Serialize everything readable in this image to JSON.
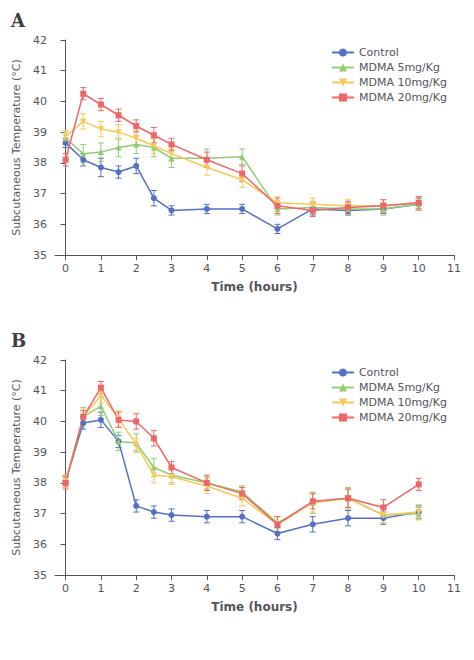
{
  "chart_data": [
    {
      "type": "line",
      "title": "A",
      "xlabel": "Time (hours)",
      "ylabel": "Subcutaneous Temperature (°C)",
      "x": [
        0,
        0.5,
        1,
        1.5,
        2,
        2.5,
        3,
        4,
        5,
        6,
        7,
        8,
        9,
        10
      ],
      "xlim": [
        -0.3,
        11
      ],
      "ylim": [
        35,
        42
      ],
      "xticks": [
        0,
        1,
        2,
        3,
        4,
        5,
        6,
        7,
        8,
        9,
        10,
        11
      ],
      "yticks": [
        35,
        36,
        37,
        38,
        39,
        40,
        41,
        42
      ],
      "grid": false,
      "legend": "upper right",
      "series": [
        {
          "name": "Control",
          "marker": "circle",
          "values": [
            38.65,
            38.1,
            37.85,
            37.7,
            37.9,
            36.85,
            36.45,
            36.5,
            36.5,
            35.85,
            36.5,
            36.45,
            36.5,
            36.65
          ],
          "errors": [
            0.15,
            0.2,
            0.3,
            0.2,
            0.25,
            0.25,
            0.15,
            0.15,
            0.15,
            0.15,
            0.2,
            0.15,
            0.15,
            0.2
          ]
        },
        {
          "name": "MDMA 5mg/Kg",
          "marker": "triangle-up",
          "values": [
            38.8,
            38.3,
            38.35,
            38.5,
            38.6,
            38.5,
            38.15,
            38.15,
            38.2,
            36.5,
            36.55,
            36.5,
            36.5,
            36.65
          ],
          "errors": [
            0.2,
            0.3,
            0.3,
            0.3,
            0.3,
            0.3,
            0.3,
            0.3,
            0.25,
            0.2,
            0.2,
            0.2,
            0.2,
            0.2
          ]
        },
        {
          "name": "MDMA 10mg/Kg",
          "marker": "triangle-down",
          "values": [
            38.85,
            39.35,
            39.1,
            39.0,
            38.8,
            38.55,
            38.3,
            37.85,
            37.45,
            36.7,
            36.65,
            36.6,
            36.6,
            36.7
          ],
          "errors": [
            0.2,
            0.25,
            0.25,
            0.25,
            0.25,
            0.25,
            0.25,
            0.25,
            0.25,
            0.2,
            0.2,
            0.2,
            0.2,
            0.2
          ]
        },
        {
          "name": "MDMA 20mg/Kg",
          "marker": "square",
          "values": [
            38.1,
            40.25,
            39.9,
            39.55,
            39.2,
            38.9,
            38.6,
            38.1,
            37.65,
            36.6,
            36.45,
            36.55,
            36.6,
            36.7
          ],
          "errors": [
            0.2,
            0.2,
            0.2,
            0.2,
            0.2,
            0.25,
            0.2,
            0.25,
            0.25,
            0.25,
            0.2,
            0.2,
            0.2,
            0.2
          ]
        }
      ]
    },
    {
      "type": "line",
      "title": "B",
      "xlabel": "Time (hours)",
      "ylabel": "Subcutaneous Temperature (°C)",
      "x": [
        0,
        0.5,
        1,
        1.5,
        2,
        2.5,
        3,
        4,
        5,
        6,
        7,
        8,
        9,
        10
      ],
      "xlim": [
        -0.3,
        11
      ],
      "ylim": [
        35,
        42
      ],
      "xticks": [
        0,
        1,
        2,
        3,
        4,
        5,
        6,
        7,
        8,
        9,
        10,
        11
      ],
      "yticks": [
        35,
        36,
        37,
        38,
        39,
        40,
        41,
        42
      ],
      "grid": false,
      "legend": "upper right",
      "series": [
        {
          "name": "Control",
          "marker": "circle",
          "values": [
            38.05,
            39.95,
            40.05,
            39.35,
            37.25,
            37.05,
            36.95,
            36.9,
            36.9,
            36.35,
            36.65,
            36.85,
            36.85,
            37.05
          ],
          "errors": [
            0.15,
            0.2,
            0.25,
            0.2,
            0.2,
            0.2,
            0.2,
            0.2,
            0.2,
            0.2,
            0.25,
            0.25,
            0.2,
            0.2
          ]
        },
        {
          "name": "MDMA 5mg/Kg",
          "marker": "triangle-up",
          "values": [
            38.05,
            40.15,
            40.5,
            39.35,
            39.3,
            38.5,
            38.25,
            38.0,
            37.7,
            36.7,
            37.35,
            37.5,
            36.95,
            37.0
          ],
          "errors": [
            0.2,
            0.3,
            0.3,
            0.3,
            0.3,
            0.3,
            0.25,
            0.2,
            0.2,
            0.2,
            0.35,
            0.35,
            0.25,
            0.2
          ]
        },
        {
          "name": "MDMA 10mg/Kg",
          "marker": "triangle-down",
          "values": [
            38.05,
            40.15,
            40.85,
            40.1,
            39.25,
            38.25,
            38.2,
            37.9,
            37.5,
            36.65,
            37.35,
            37.5,
            36.95,
            37.05
          ],
          "errors": [
            0.2,
            0.25,
            0.25,
            0.25,
            0.2,
            0.25,
            0.25,
            0.25,
            0.25,
            0.25,
            0.3,
            0.3,
            0.25,
            0.25
          ]
        },
        {
          "name": "MDMA 20mg/Kg",
          "marker": "square",
          "values": [
            38.0,
            40.15,
            41.1,
            40.05,
            40.0,
            39.45,
            38.5,
            38.0,
            37.65,
            36.65,
            37.4,
            37.5,
            37.2,
            37.95
          ],
          "errors": [
            0.2,
            0.2,
            0.2,
            0.25,
            0.25,
            0.25,
            0.2,
            0.25,
            0.2,
            0.25,
            0.25,
            0.3,
            0.25,
            0.2
          ]
        }
      ]
    }
  ]
}
